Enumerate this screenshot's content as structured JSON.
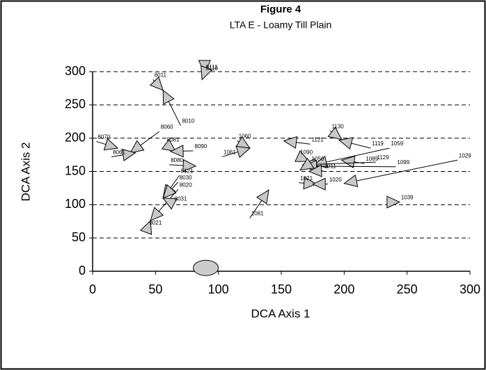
{
  "chart_data": {
    "type": "scatter",
    "title": "Figure 4",
    "subtitle": "LTA E - Loamy Till Plain",
    "x_label": "DCA Axis 1",
    "y_label": "DCA Axis 2",
    "xlim": [
      0,
      300
    ],
    "ylim": [
      0,
      300
    ],
    "xticks": [
      0,
      50,
      100,
      150,
      200,
      250,
      300
    ],
    "yticks": [
      0,
      50,
      100,
      150,
      200,
      250,
      300
    ],
    "grid": true,
    "arrows": [
      {
        "label": "8010",
        "x": [
          70,
          56
        ],
        "y": [
          219,
          272
        ]
      },
      {
        "label": "8011",
        "x": [
          48,
          56
        ],
        "y": [
          288,
          272
        ]
      },
      {
        "label": "8111",
        "x": [
          89,
          89
        ],
        "y": [
          300,
          298
        ]
      },
      {
        "label": "8110",
        "x": [
          89,
          87
        ],
        "y": [
          298,
          288
        ]
      },
      {
        "label": "8070",
        "x": [
          3,
          20
        ],
        "y": [
          195,
          185
        ]
      },
      {
        "label": "8060",
        "x": [
          53,
          30
        ],
        "y": [
          210,
          178
        ]
      },
      {
        "label": "8061",
        "x": [
          15,
          34
        ],
        "y": [
          172,
          178
        ]
      },
      {
        "label": "8081",
        "x": [
          58,
          66
        ],
        "y": [
          191,
          180
        ]
      },
      {
        "label": "8090",
        "x": [
          80,
          62
        ],
        "y": [
          181,
          180
        ]
      },
      {
        "label": "8080",
        "x": [
          61,
          82
        ],
        "y": [
          160,
          158
        ]
      },
      {
        "label": "8121",
        "x": [
          69,
          56
        ],
        "y": [
          144,
          110
        ]
      },
      {
        "label": "8030",
        "x": [
          68,
          56
        ],
        "y": [
          134,
          110
        ]
      },
      {
        "label": "8020",
        "x": [
          68,
          46
        ],
        "y": [
          123,
          76
        ]
      },
      {
        "label": "8031",
        "x": [
          64,
          56
        ],
        "y": [
          102,
          110
        ]
      },
      {
        "label": "8021",
        "x": [
          44,
          46
        ],
        "y": [
          66,
          76
        ]
      },
      {
        "label": "1060",
        "x": [
          115,
          125
        ],
        "y": [
          196,
          185
        ]
      },
      {
        "label": "1061",
        "x": [
          103,
          125
        ],
        "y": [
          172,
          185
        ]
      },
      {
        "label": "1130",
        "x": [
          189,
          198
        ],
        "y": [
          211,
          198
        ]
      },
      {
        "label": "1121",
        "x": [
          173,
          152
        ],
        "y": [
          191,
          196
        ]
      },
      {
        "label": "1119",
        "x": [
          221,
          196
        ],
        "y": [
          185,
          197
        ]
      },
      {
        "label": "1059",
        "x": [
          236,
          176
        ],
        "y": [
          185,
          160
        ]
      },
      {
        "label": "1089",
        "x": [
          216,
          198
        ],
        "y": [
          162,
          167
        ]
      },
      {
        "label": "1129",
        "x": [
          225,
          167
        ],
        "y": [
          164,
          160
        ]
      },
      {
        "label": "1099",
        "x": [
          241,
          168
        ],
        "y": [
          157,
          158
        ]
      },
      {
        "label": "1029",
        "x": [
          290,
          200
        ],
        "y": [
          167,
          132
        ]
      },
      {
        "label": "1039",
        "x": [
          244,
          244
        ],
        "y": [
          104,
          104
        ]
      },
      {
        "label": "1081",
        "x": [
          125,
          140
        ],
        "y": [
          80,
          122
        ]
      },
      {
        "label": "1090",
        "x": [
          164,
          172
        ],
        "y": [
          172,
          165
        ]
      },
      {
        "label": "1050",
        "x": [
          173,
          165
        ],
        "y": [
          162,
          152
        ]
      },
      {
        "label": "1011",
        "x": [
          183,
          172
        ],
        "y": [
          151,
          150
        ]
      },
      {
        "label": "1021",
        "x": [
          164,
          178
        ],
        "y": [
          133,
          131
        ]
      },
      {
        "label": "1020",
        "x": [
          187,
          175
        ],
        "y": [
          131,
          131
        ]
      }
    ],
    "ellipse": {
      "x": 90,
      "y": 5
    }
  }
}
